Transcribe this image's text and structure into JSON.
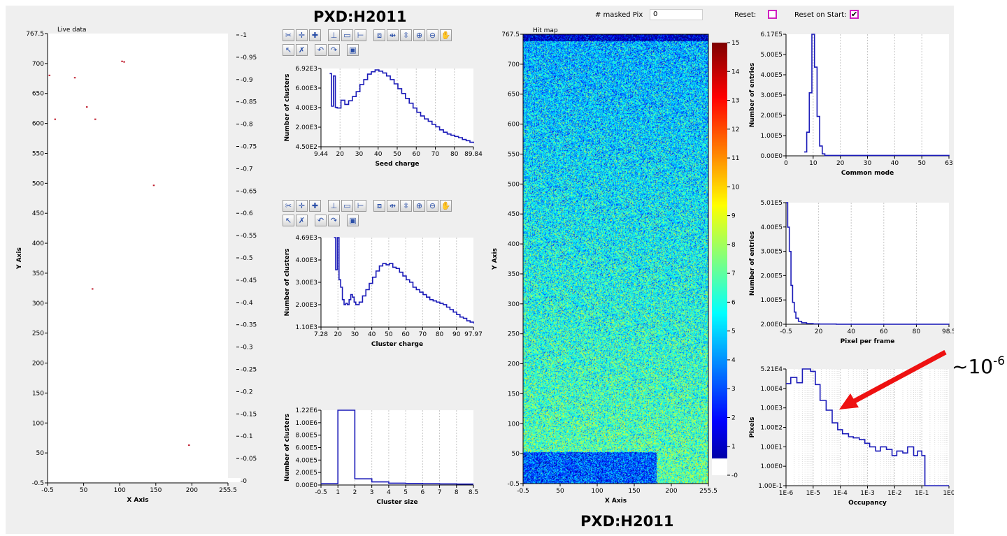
{
  "titles": {
    "top": "PXD:H2011",
    "bottom": "PXD:H2011"
  },
  "controls": {
    "masked_label": "# masked Pix",
    "masked_value": "0",
    "reset_label": "Reset:",
    "reset_start_label": "Reset on Start:",
    "reset_start_check": "✔"
  },
  "annotation": {
    "base": "~10",
    "exp": "-6",
    "color": "#ee1111"
  },
  "toolbar_icons": [
    "scissors-icon",
    "crosshair-icon",
    "crosshair-add-icon",
    "axis-icon",
    "fit-icon",
    "line-icon",
    "zoom-box-icon",
    "drag-icon",
    "split-icon",
    "zoom-in-icon",
    "zoom-out-icon",
    "hand-icon",
    "pointer-icon",
    "erase-icon",
    "undo-icon",
    "redo-icon",
    "print-icon"
  ],
  "chart_data": [
    {
      "id": "live",
      "type": "scatter",
      "title": "Live data",
      "xlabel": "X Axis",
      "ylabel": "Y Axis",
      "xlim": [
        -0.5,
        255.5
      ],
      "ylim": [
        -0.5,
        767.5
      ],
      "xticks": [
        "-0.5",
        "50",
        "100",
        "150",
        "200",
        "255.5"
      ],
      "yticks": [
        "767.5",
        "700",
        "650",
        "600",
        "550",
        "500",
        "450",
        "400",
        "350",
        "300",
        "250",
        "200",
        "150",
        "100",
        "50",
        "-0.5"
      ],
      "color_ticks": [
        "-1",
        "-0.95",
        "-0.9",
        "-0.85",
        "-0.8",
        "-0.75",
        "-0.7",
        "-0.65",
        "-0.6",
        "-0.55",
        "-0.5",
        "-0.45",
        "-0.4",
        "-0.35",
        "-0.3",
        "-0.25",
        "-0.2",
        "-0.15",
        "-0.1",
        "-0.05",
        "-0"
      ],
      "points": [
        [
          2,
          696
        ],
        [
          38,
          692
        ],
        [
          108,
          719
        ],
        [
          105,
          720
        ],
        [
          67,
          621
        ],
        [
          10,
          621
        ],
        [
          55,
          642
        ],
        [
          150,
          508
        ],
        [
          63,
          331
        ],
        [
          200,
          64
        ]
      ]
    },
    {
      "id": "seed",
      "type": "line",
      "xlabel": "Seed charge",
      "ylabel": "Number of clusters",
      "xlim": [
        9.44,
        89.84
      ],
      "ylim": [
        450,
        6920
      ],
      "xticks": [
        "9.44",
        "20",
        "30",
        "40",
        "50",
        "60",
        "70",
        "80",
        "89.84"
      ],
      "yticks": [
        "6.92E3",
        "6.00E3",
        "4.00E3",
        "2.00E3",
        "4.50E2"
      ],
      "x": [
        14,
        15,
        16,
        17,
        18,
        20,
        22,
        24,
        26,
        28,
        30,
        32,
        34,
        36,
        38,
        40,
        42,
        44,
        46,
        48,
        50,
        52,
        54,
        56,
        58,
        60,
        62,
        64,
        66,
        68,
        70,
        72,
        74,
        76,
        78,
        80,
        82,
        84,
        86,
        88,
        89.84
      ],
      "y": [
        6500,
        3800,
        6300,
        3700,
        3650,
        4300,
        3950,
        4250,
        4600,
        5000,
        5600,
        6000,
        6450,
        6650,
        6800,
        6700,
        6550,
        6300,
        6000,
        5650,
        5250,
        4850,
        4450,
        4050,
        3650,
        3300,
        3000,
        2750,
        2550,
        2300,
        2100,
        1850,
        1650,
        1500,
        1400,
        1300,
        1200,
        1050,
        950,
        820,
        750
      ]
    },
    {
      "id": "cluster",
      "type": "line",
      "xlabel": "Cluster charge",
      "ylabel": "Number of clusters",
      "xlim": [
        7.28,
        97.97
      ],
      "ylim": [
        1100,
        4690
      ],
      "xticks": [
        "7.28",
        "20",
        "30",
        "40",
        "50",
        "60",
        "70",
        "80",
        "90",
        "97.97"
      ],
      "yticks": [
        "4.69E3",
        "4.00E3",
        "3.00E3",
        "2.00E3",
        "1.10E3"
      ],
      "x": [
        15,
        16,
        17,
        18,
        19,
        20,
        21,
        22,
        23,
        24,
        25,
        26,
        27,
        28,
        30,
        32,
        34,
        36,
        38,
        40,
        42,
        44,
        46,
        48,
        50,
        52,
        54,
        56,
        58,
        60,
        62,
        64,
        66,
        68,
        70,
        72,
        74,
        76,
        78,
        80,
        82,
        84,
        86,
        88,
        90,
        92,
        94,
        96,
        97.97
      ],
      "y": [
        4690,
        3400,
        4690,
        3000,
        2700,
        2200,
        2000,
        2050,
        2000,
        2200,
        2400,
        2300,
        2100,
        2000,
        2100,
        2350,
        2600,
        2850,
        3100,
        3350,
        3550,
        3650,
        3600,
        3650,
        3500,
        3450,
        3300,
        3150,
        3000,
        2900,
        2700,
        2600,
        2500,
        2400,
        2300,
        2200,
        2150,
        2100,
        2050,
        2000,
        1900,
        1800,
        1700,
        1600,
        1500,
        1450,
        1350,
        1300,
        1250
      ]
    },
    {
      "id": "size",
      "type": "line",
      "xlabel": "Cluster size",
      "ylabel": "Number of clusters",
      "xlim": [
        -0.5,
        8.5
      ],
      "ylim": [
        0,
        1220000
      ],
      "xticks": [
        "-0.5",
        "1",
        "2",
        "3",
        "4",
        "5",
        "6",
        "7",
        "8",
        "8.5"
      ],
      "yticks": [
        "1.22E6",
        "1.00E6",
        "8.00E5",
        "6.00E5",
        "4.00E5",
        "2.00E5",
        "0.00E0"
      ],
      "x": [
        -0.5,
        0.5,
        1.5,
        2.5,
        3.5,
        4.5,
        5.5,
        6.5,
        7.5,
        8.5
      ],
      "y": [
        20000,
        1220000,
        100000,
        50000,
        30000,
        25000,
        20000,
        18000,
        15000,
        15000
      ]
    },
    {
      "id": "hitmap",
      "type": "heatmap",
      "title": "Hit map",
      "xlabel": "X Axis",
      "ylabel": "Y Axis",
      "xlim": [
        -0.5,
        255.5
      ],
      "ylim": [
        -0.5,
        767.5
      ],
      "xticks": [
        "-0.5",
        "50",
        "100",
        "150",
        "200",
        "255.5"
      ],
      "yticks": [
        "767.5",
        "700",
        "650",
        "600",
        "550",
        "500",
        "450",
        "400",
        "350",
        "300",
        "250",
        "200",
        "150",
        "100",
        "50",
        "-0.5"
      ],
      "zlim": [
        0,
        15
      ],
      "zticks": [
        "15",
        "14",
        "13",
        "12",
        "11",
        "10",
        "9",
        "8",
        "7",
        "6",
        "5",
        "4",
        "3",
        "2",
        "1",
        "-0"
      ]
    },
    {
      "id": "common",
      "type": "line",
      "xlabel": "Common mode",
      "ylabel": "Number of entries",
      "xlim": [
        0,
        63
      ],
      "ylim": [
        0,
        617000
      ],
      "xticks": [
        "0",
        "10",
        "20",
        "30",
        "40",
        "50",
        "63"
      ],
      "yticks": [
        "6.17E5",
        "5.00E5",
        "4.00E5",
        "3.00E5",
        "2.00E5",
        "1.00E5",
        "0.00E0"
      ],
      "x": [
        7,
        8,
        9,
        10,
        11,
        12,
        13,
        14,
        15,
        63
      ],
      "y": [
        20000,
        120000,
        320000,
        617000,
        450000,
        200000,
        50000,
        10000,
        2000,
        0
      ]
    },
    {
      "id": "ppf",
      "type": "line",
      "xlabel": "Pixel per frame",
      "ylabel": "Number of entries",
      "xlim": [
        -0.5,
        98.5
      ],
      "ylim": [
        0,
        501000
      ],
      "xticks": [
        "-0.5",
        "20",
        "40",
        "60",
        "80",
        "98.5"
      ],
      "yticks": [
        "5.01E5",
        "4.00E5",
        "3.00E5",
        "2.00E5",
        "1.00E5",
        "2.00E0"
      ],
      "x": [
        -0.5,
        0.5,
        1.5,
        2.5,
        3.5,
        4.5,
        5.5,
        7,
        9,
        12,
        16,
        20,
        30,
        98.5
      ],
      "y": [
        501000,
        400000,
        300000,
        160000,
        90000,
        50000,
        25000,
        12000,
        6000,
        3000,
        1500,
        800,
        300,
        100
      ]
    },
    {
      "id": "occ",
      "type": "line",
      "xlabel": "Occupancy",
      "ylabel": "Pixels",
      "xscale": "log",
      "yscale": "log",
      "xlim": [
        1e-06,
        1
      ],
      "ylim": [
        0.1,
        52100
      ],
      "xticks": [
        "1E-6",
        "1E-5",
        "1E-4",
        "1E-3",
        "1E-2",
        "1E-1",
        "1E0"
      ],
      "yticks": [
        "5.21E4",
        "1.00E4",
        "1.00E3",
        "1.00E2",
        "1.00E1",
        "1.00E0",
        "1.00E-1"
      ],
      "x": [
        1e-06,
        1.5e-06,
        2.5e-06,
        4e-06,
        8e-06,
        1.2e-05,
        1.8e-05,
        3e-05,
        5e-05,
        8e-05,
        0.00012,
        0.0002,
        0.0003,
        0.0005,
        0.0008,
        0.0012,
        0.002,
        0.003,
        0.005,
        0.008,
        0.012,
        0.02,
        0.03,
        0.05,
        0.07,
        0.1,
        0.13,
        0.18,
        1
      ],
      "y": [
        10000,
        20000,
        11000,
        52100,
        40000,
        9000,
        1500,
        500,
        120,
        55,
        35,
        25,
        22,
        18,
        12,
        8,
        5,
        8,
        6,
        3,
        5,
        4,
        8,
        3,
        5,
        3,
        0.1,
        0.1,
        0.1
      ]
    }
  ]
}
